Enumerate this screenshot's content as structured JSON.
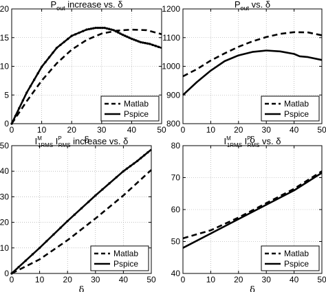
{
  "chart_data": [
    {
      "type": "line",
      "title": {
        "main": "P",
        "sub": "out",
        "rest": " increase vs. δ"
      },
      "xlabel": "δ",
      "ylabel": "",
      "xlim": [
        0,
        50
      ],
      "ylim": [
        0,
        20
      ],
      "xticks": [
        0,
        10,
        20,
        30,
        40,
        50
      ],
      "yticks": [
        0,
        5,
        10,
        15,
        20
      ],
      "ytick_labels": [
        "0",
        "5",
        "10",
        "15",
        "20"
      ],
      "grid": true,
      "legend": "bottom-right",
      "series": [
        {
          "name": "Matlab",
          "style": "dashed",
          "x": [
            0,
            5,
            10,
            15,
            20,
            25,
            30,
            35,
            40,
            45,
            50
          ],
          "y": [
            0,
            3.9,
            7.5,
            10.5,
            12.9,
            14.6,
            15.7,
            16.2,
            16.4,
            16.3,
            15.6
          ]
        },
        {
          "name": "Pspice",
          "style": "solid",
          "markers": true,
          "x": [
            0,
            5,
            10,
            15,
            20,
            25,
            28,
            31,
            34,
            37,
            40,
            43,
            46,
            50
          ],
          "y": [
            0,
            5.4,
            9.9,
            13.2,
            15.3,
            16.4,
            16.7,
            16.7,
            16.3,
            15.5,
            14.8,
            14.2,
            13.9,
            13.2
          ]
        }
      ]
    },
    {
      "type": "line",
      "title": {
        "main": "P",
        "sub": "out",
        "rest": " vs. δ"
      },
      "xlabel": "δ",
      "ylabel": "",
      "xlim": [
        0,
        50
      ],
      "ylim": [
        800,
        1200
      ],
      "xticks": [
        0,
        10,
        20,
        30,
        40,
        50
      ],
      "yticks": [
        800,
        900,
        1000,
        1100,
        1200
      ],
      "ytick_labels": [
        "800",
        "900",
        "1000",
        "1100",
        "1200"
      ],
      "grid": true,
      "legend": "bottom-right",
      "series": [
        {
          "name": "Matlab",
          "style": "dashed",
          "x": [
            0,
            5,
            10,
            15,
            20,
            25,
            30,
            35,
            40,
            45,
            50
          ],
          "y": [
            965,
            990,
            1020,
            1045,
            1068,
            1087,
            1102,
            1113,
            1119,
            1118,
            1108
          ]
        },
        {
          "name": "Pspice",
          "style": "solid",
          "x": [
            0,
            5,
            10,
            15,
            20,
            25,
            30,
            35,
            40,
            42,
            45,
            50
          ],
          "y": [
            900,
            945,
            985,
            1018,
            1038,
            1050,
            1055,
            1052,
            1043,
            1035,
            1032,
            1022
          ]
        }
      ]
    },
    {
      "type": "line",
      "title": {
        "pre": "I",
        "sup1": "M",
        "sub1": "1RMS",
        "mid": " I",
        "sup2": "P",
        "sub2": "RMS",
        "rest": " increase vs. δ"
      },
      "xlabel": "δ",
      "ylabel": "",
      "xlim": [
        0,
        50
      ],
      "ylim": [
        0,
        50
      ],
      "xticks": [
        0,
        10,
        20,
        30,
        40,
        50
      ],
      "yticks": [
        0,
        10,
        20,
        30,
        40,
        50
      ],
      "ytick_labels": [
        "0",
        "10",
        "20",
        "30",
        "40",
        "50"
      ],
      "grid": true,
      "legend": "bottom-right",
      "series": [
        {
          "name": "Matlab",
          "style": "dashed",
          "x": [
            0,
            10,
            20,
            30,
            40,
            50
          ],
          "y": [
            0,
            5.5,
            13.0,
            21.5,
            30.5,
            40.5
          ]
        },
        {
          "name": "Pspice",
          "style": "solid",
          "markers": true,
          "x": [
            0,
            10,
            20,
            30,
            40,
            45,
            50
          ],
          "y": [
            0,
            10.0,
            20.5,
            30.5,
            40.0,
            44.0,
            48.5
          ]
        }
      ]
    },
    {
      "type": "line",
      "title": {
        "pre": "I",
        "sup1": "M",
        "sub1": "1RMS",
        "mid": " I",
        "sup2": "P",
        "sub2": "RMS",
        "rest": " vs. δ"
      },
      "xlabel": "δ",
      "ylabel": "",
      "xlim": [
        0,
        50
      ],
      "ylim": [
        40,
        80
      ],
      "xticks": [
        0,
        10,
        20,
        30,
        40,
        50
      ],
      "yticks": [
        40,
        50,
        60,
        70,
        80
      ],
      "ytick_labels": [
        "40",
        "50",
        "60",
        "70",
        "80"
      ],
      "grid": true,
      "legend": "bottom-right",
      "series": [
        {
          "name": "Matlab",
          "style": "dashed",
          "x": [
            0,
            10,
            20,
            30,
            40,
            50
          ],
          "y": [
            51.0,
            53.5,
            57.5,
            62.0,
            66.5,
            72.0
          ]
        },
        {
          "name": "Pspice",
          "style": "solid",
          "x": [
            0,
            10,
            20,
            30,
            40,
            50
          ],
          "y": [
            48.0,
            52.5,
            57.0,
            61.5,
            66.0,
            71.5
          ]
        }
      ]
    }
  ]
}
